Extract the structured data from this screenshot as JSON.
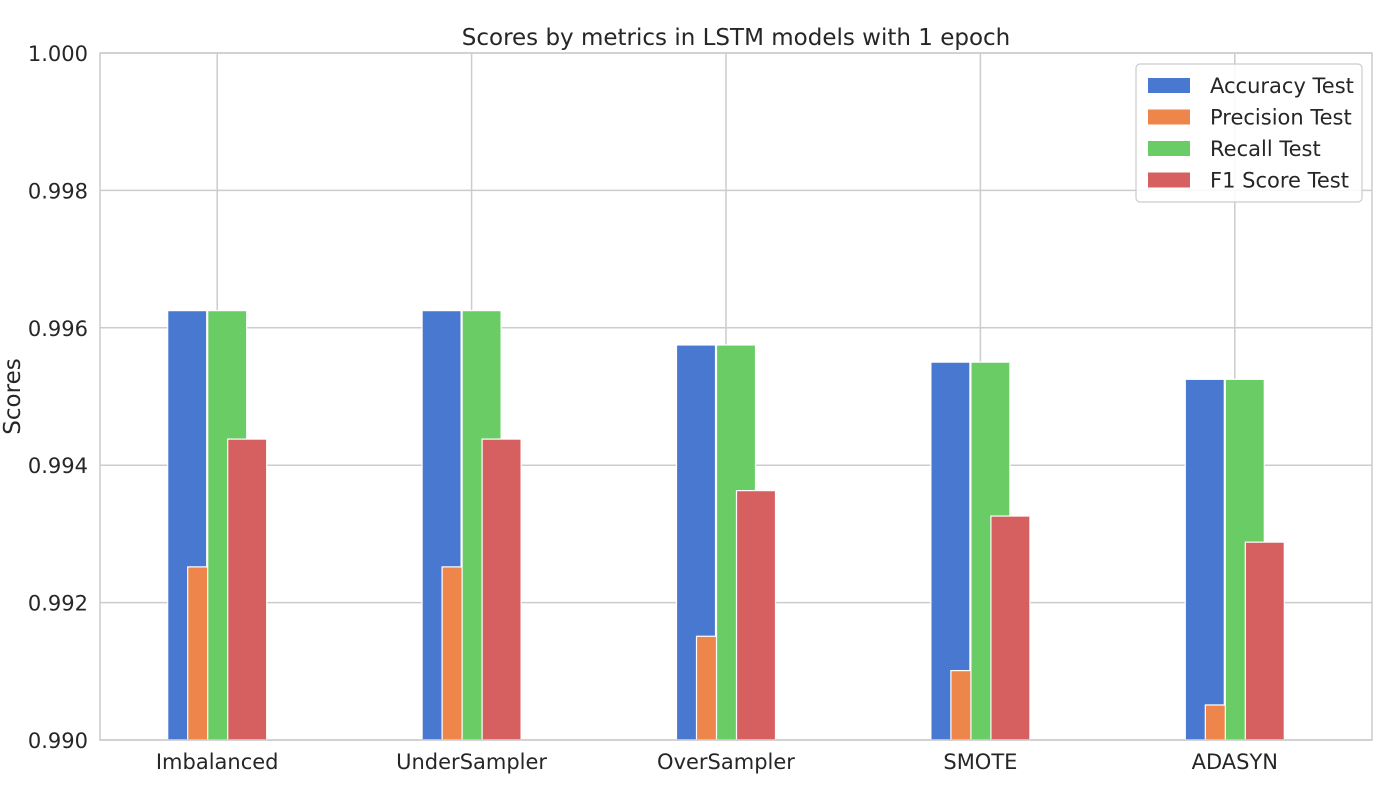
{
  "chart_data": {
    "type": "bar",
    "title": "Scores by metrics in LSTM models with 1 epoch",
    "xlabel": "",
    "ylabel": "Scores",
    "ylim": [
      0.99,
      1.0
    ],
    "yticks": [
      "0.990",
      "0.992",
      "0.994",
      "0.996",
      "0.998",
      "1.000"
    ],
    "grid": true,
    "legend_position": "top-right",
    "categories": [
      "Imbalanced",
      "UnderSampler",
      "OverSampler",
      "SMOTE",
      "ADASYN"
    ],
    "series": [
      {
        "name": "Accuracy Test",
        "color": "#4878d0",
        "values": [
          0.99625,
          0.99625,
          0.99575,
          0.9955,
          0.99525
        ]
      },
      {
        "name": "Precision Test",
        "color": "#ee854a",
        "values": [
          0.99252,
          0.99252,
          0.99151,
          0.99101,
          0.99051
        ]
      },
      {
        "name": "Recall Test",
        "color": "#6acc64",
        "values": [
          0.99625,
          0.99625,
          0.99575,
          0.9955,
          0.99525
        ]
      },
      {
        "name": "F1 Score Test",
        "color": "#d65f5f",
        "values": [
          0.99438,
          0.99438,
          0.99363,
          0.99326,
          0.99288
        ]
      }
    ]
  }
}
